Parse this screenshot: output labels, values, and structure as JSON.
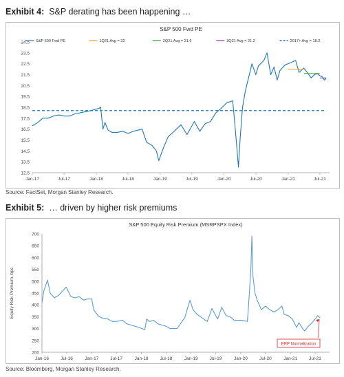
{
  "exhibits": [
    {
      "label": "Exhibit 4:",
      "title": "S&P derating has been happening …",
      "source": "Source: FactSet, Morgan Stanley Research."
    },
    {
      "label": "Exhibit 5:",
      "title": "… driven by higher risk premiums",
      "source": "Source: Bloomberg, Morgan Stanley Research."
    }
  ],
  "chart_data": [
    {
      "type": "line",
      "title": "S&P 500 Fwd PE",
      "xlabel": "",
      "ylabel": "",
      "x_tick_labels": [
        "Jan-17",
        "Jul-17",
        "Jan-18",
        "Jul-18",
        "Jan-19",
        "Jul-19",
        "Jan-20",
        "Jul-20",
        "Jan-21",
        "Jul-21"
      ],
      "ylim": [
        12.5,
        24.5
      ],
      "y_ticks": [
        12.5,
        13.5,
        14.5,
        15.5,
        16.5,
        17.5,
        18.5,
        19.5,
        20.5,
        21.5,
        22.5,
        23.5,
        24.5
      ],
      "legend_position": "top",
      "grid": false,
      "series": [
        {
          "name": "S&P 500 Fwd PE",
          "color": "#1f77b4",
          "points": [
            [
              "2017-01-01",
              16.8
            ],
            [
              "2017-02-01",
              17.1
            ],
            [
              "2017-03-01",
              17.5
            ],
            [
              "2017-04-01",
              17.5
            ],
            [
              "2017-05-01",
              17.7
            ],
            [
              "2017-06-01",
              17.8
            ],
            [
              "2017-07-01",
              17.7
            ],
            [
              "2017-08-01",
              17.7
            ],
            [
              "2017-09-01",
              17.9
            ],
            [
              "2017-10-01",
              18.0
            ],
            [
              "2017-11-01",
              18.1
            ],
            [
              "2017-12-01",
              18.2
            ],
            [
              "2018-01-15",
              18.4
            ],
            [
              "2018-01-26",
              18.5
            ],
            [
              "2018-02-08",
              16.5
            ],
            [
              "2018-02-20",
              17.1
            ],
            [
              "2018-03-10",
              16.4
            ],
            [
              "2018-04-01",
              16.2
            ],
            [
              "2018-05-01",
              16.2
            ],
            [
              "2018-06-01",
              16.3
            ],
            [
              "2018-07-01",
              16.1
            ],
            [
              "2018-08-01",
              16.3
            ],
            [
              "2018-09-20",
              16.5
            ],
            [
              "2018-10-15",
              15.3
            ],
            [
              "2018-11-15",
              15.0
            ],
            [
              "2018-12-10",
              14.5
            ],
            [
              "2018-12-24",
              13.6
            ],
            [
              "2019-01-15",
              14.6
            ],
            [
              "2019-02-15",
              15.8
            ],
            [
              "2019-03-15",
              16.2
            ],
            [
              "2019-04-30",
              16.9
            ],
            [
              "2019-06-03",
              16.0
            ],
            [
              "2019-07-15",
              17.2
            ],
            [
              "2019-08-15",
              16.3
            ],
            [
              "2019-09-15",
              17.0
            ],
            [
              "2019-10-15",
              17.2
            ],
            [
              "2019-11-15",
              18.0
            ],
            [
              "2019-12-15",
              18.4
            ],
            [
              "2020-01-15",
              18.9
            ],
            [
              "2020-02-19",
              19.1
            ],
            [
              "2020-03-05",
              16.5
            ],
            [
              "2020-03-23",
              13.0
            ],
            [
              "2020-04-01",
              15.5
            ],
            [
              "2020-04-15",
              18.5
            ],
            [
              "2020-05-01",
              20.0
            ],
            [
              "2020-06-08",
              22.5
            ],
            [
              "2020-06-30",
              21.5
            ],
            [
              "2020-07-15",
              22.3
            ],
            [
              "2020-08-15",
              22.8
            ],
            [
              "2020-09-02",
              23.5
            ],
            [
              "2020-09-23",
              21.5
            ],
            [
              "2020-10-12",
              22.2
            ],
            [
              "2020-10-30",
              21.0
            ],
            [
              "2020-11-15",
              21.9
            ],
            [
              "2020-12-15",
              22.4
            ],
            [
              "2021-01-15",
              22.6
            ],
            [
              "2021-02-12",
              22.8
            ],
            [
              "2021-03-04",
              21.7
            ],
            [
              "2021-03-31",
              22.1
            ],
            [
              "2021-04-15",
              21.8
            ],
            [
              "2021-05-12",
              21.2
            ],
            [
              "2021-05-31",
              21.5
            ],
            [
              "2021-06-15",
              21.6
            ],
            [
              "2021-07-01",
              21.4
            ],
            [
              "2021-07-15",
              21.3
            ],
            [
              "2021-07-27",
              21.0
            ],
            [
              "2021-08-06",
              21.2
            ]
          ]
        },
        {
          "name": "1Q21 Avg = 22",
          "color": "#f0a020",
          "from": "2021-01-01",
          "to": "2021-03-31",
          "value": 22.0
        },
        {
          "name": "2Q21 Avg = 21.6",
          "color": "#2ca02c",
          "from": "2021-04-01",
          "to": "2021-06-30",
          "value": 21.6
        },
        {
          "name": "3Q21 Avg = 21.2",
          "color": "#7b3fa0",
          "from": "2021-07-01",
          "to": "2021-08-06",
          "value": 21.2
        },
        {
          "name": "2017+ Avg = 18.2",
          "color": "#1f77b4",
          "dashed": true,
          "from": "2017-01-01",
          "to": "2021-08-06",
          "value": 18.2
        }
      ]
    },
    {
      "type": "line",
      "title": "S&P 500 Equity Risk Premium (MSRPSPX Index)",
      "xlabel": "",
      "ylabel": "Equity Risk Premium, bps",
      "x_tick_labels": [
        "Jan-16",
        "Jul-16",
        "Jan-17",
        "Jul-17",
        "Jan-18",
        "Jul-18",
        "Jan-19",
        "Jul-19",
        "Jan-20",
        "Jul-20",
        "Jan-21",
        "Jul-21"
      ],
      "ylim": [
        200,
        700
      ],
      "y_ticks": [
        200,
        250,
        300,
        350,
        400,
        450,
        500,
        550,
        600,
        650,
        700
      ],
      "grid": false,
      "annotations": [
        {
          "text": "ERP Normalization",
          "color": "#d62728"
        }
      ],
      "series": [
        {
          "name": "",
          "color": "#5b9bd5",
          "points": [
            [
              "2016-01-01",
              410
            ],
            [
              "2016-01-15",
              460
            ],
            [
              "2016-02-11",
              505
            ],
            [
              "2016-03-01",
              450
            ],
            [
              "2016-04-01",
              430
            ],
            [
              "2016-05-01",
              440
            ],
            [
              "2016-06-27",
              475
            ],
            [
              "2016-08-01",
              435
            ],
            [
              "2016-09-01",
              430
            ],
            [
              "2016-10-01",
              435
            ],
            [
              "2016-11-01",
              420
            ],
            [
              "2016-12-01",
              425
            ],
            [
              "2017-01-01",
              425
            ],
            [
              "2017-01-15",
              380
            ],
            [
              "2017-02-15",
              355
            ],
            [
              "2017-03-15",
              345
            ],
            [
              "2017-05-01",
              340
            ],
            [
              "2017-06-01",
              330
            ],
            [
              "2017-07-01",
              330
            ],
            [
              "2017-08-15",
              335
            ],
            [
              "2017-09-15",
              320
            ],
            [
              "2017-10-15",
              315
            ],
            [
              "2017-11-15",
              310
            ],
            [
              "2017-12-15",
              305
            ],
            [
              "2018-01-26",
              295
            ],
            [
              "2018-02-08",
              340
            ],
            [
              "2018-03-01",
              330
            ],
            [
              "2018-04-01",
              335
            ],
            [
              "2018-05-01",
              320
            ],
            [
              "2018-06-01",
              315
            ],
            [
              "2018-07-01",
              310
            ],
            [
              "2018-08-01",
              300
            ],
            [
              "2018-09-20",
              300
            ],
            [
              "2018-10-15",
              320
            ],
            [
              "2018-11-15",
              345
            ],
            [
              "2018-12-24",
              420
            ],
            [
              "2019-01-15",
              380
            ],
            [
              "2019-02-15",
              360
            ],
            [
              "2019-04-30",
              330
            ],
            [
              "2019-06-03",
              385
            ],
            [
              "2019-07-15",
              340
            ],
            [
              "2019-08-15",
              390
            ],
            [
              "2019-09-15",
              355
            ],
            [
              "2019-10-15",
              350
            ],
            [
              "2019-11-15",
              335
            ],
            [
              "2019-12-15",
              335
            ],
            [
              "2020-01-15",
              335
            ],
            [
              "2020-02-19",
              330
            ],
            [
              "2020-03-05",
              450
            ],
            [
              "2020-03-16",
              560
            ],
            [
              "2020-03-23",
              690
            ],
            [
              "2020-03-31",
              520
            ],
            [
              "2020-04-15",
              450
            ],
            [
              "2020-05-01",
              420
            ],
            [
              "2020-06-01",
              380
            ],
            [
              "2020-07-01",
              395
            ],
            [
              "2020-08-01",
              380
            ],
            [
              "2020-09-01",
              370
            ],
            [
              "2020-10-01",
              380
            ],
            [
              "2020-10-30",
              395
            ],
            [
              "2020-11-15",
              360
            ],
            [
              "2020-12-15",
              355
            ],
            [
              "2021-01-15",
              340
            ],
            [
              "2021-02-15",
              305
            ],
            [
              "2021-03-04",
              325
            ],
            [
              "2021-03-31",
              300
            ],
            [
              "2021-04-15",
              290
            ],
            [
              "2021-05-12",
              310
            ],
            [
              "2021-06-01",
              320
            ],
            [
              "2021-06-15",
              330
            ],
            [
              "2021-07-01",
              340
            ],
            [
              "2021-07-20",
              355
            ],
            [
              "2021-08-06",
              345
            ]
          ]
        }
      ]
    }
  ]
}
